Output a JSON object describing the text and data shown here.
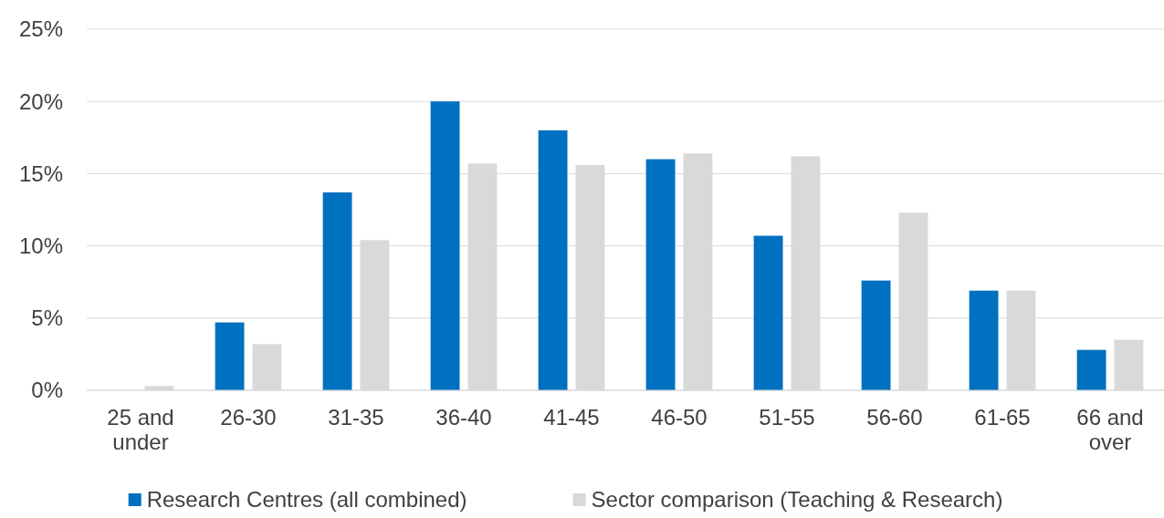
{
  "chart_data": {
    "type": "bar",
    "categories": [
      "25 and under",
      "26-30",
      "31-35",
      "36-40",
      "41-45",
      "46-50",
      "51-55",
      "56-60",
      "61-65",
      "66 and over"
    ],
    "series": [
      {
        "name": "Research Centres (all combined)",
        "color": "#0070c0",
        "values": [
          0,
          4.7,
          13.7,
          20.0,
          18.0,
          16.0,
          10.7,
          7.6,
          6.9,
          2.8
        ]
      },
      {
        "name": "Sector comparison (Teaching & Research)",
        "color": "#d9d9d9",
        "values": [
          0.3,
          3.2,
          10.4,
          15.7,
          15.6,
          16.4,
          16.2,
          12.3,
          6.9,
          3.5
        ]
      }
    ],
    "ylim": [
      0,
      25
    ],
    "yticks": [
      {
        "value": 0,
        "label": "0%"
      },
      {
        "value": 5,
        "label": "5%"
      },
      {
        "value": 10,
        "label": "10%"
      },
      {
        "value": 15,
        "label": "15%"
      },
      {
        "value": 20,
        "label": "20%"
      },
      {
        "value": 25,
        "label": "25%"
      }
    ],
    "grid": "y",
    "legend": "bottom"
  }
}
